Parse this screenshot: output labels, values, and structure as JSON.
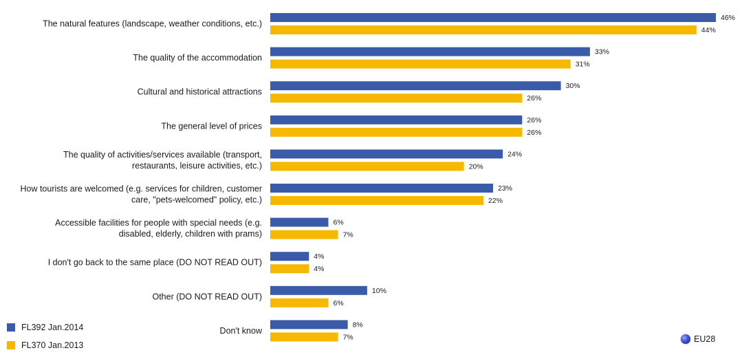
{
  "chart_data": {
    "type": "bar",
    "orientation": "horizontal",
    "categories": [
      [
        "The natural features (landscape, weather conditions, etc.)"
      ],
      [
        "The quality of the accommodation"
      ],
      [
        "Cultural and historical attractions"
      ],
      [
        "The general level of prices"
      ],
      [
        "The quality of activities/services available (transport,",
        "restaurants, leisure activities, etc.)"
      ],
      [
        "How tourists are welcomed (e.g. services for children, customer",
        "care, \"pets-welcomed\" policy, etc.)"
      ],
      [
        "Accessible facilities for people with special needs (e.g.",
        "disabled, elderly, children with prams)"
      ],
      [
        "I don't go back to the same place (DO NOT READ OUT)"
      ],
      [
        "Other (DO NOT READ OUT)"
      ],
      [
        "Don't know"
      ]
    ],
    "series": [
      {
        "name": "FL392 Jan.2014",
        "color": "#3a5ba8",
        "values": [
          46,
          33,
          30,
          26,
          24,
          23,
          6,
          4,
          10,
          8
        ]
      },
      {
        "name": "FL370 Jan.2013",
        "color": "#f6b800",
        "values": [
          44,
          31,
          26,
          26,
          20,
          22,
          7,
          4,
          6,
          7
        ]
      }
    ],
    "value_suffix": "%",
    "xlim": [
      0,
      46
    ],
    "legend_position": "bottom-left",
    "grid": false
  },
  "badge": {
    "label": "EU28",
    "icon": "globe-icon"
  }
}
